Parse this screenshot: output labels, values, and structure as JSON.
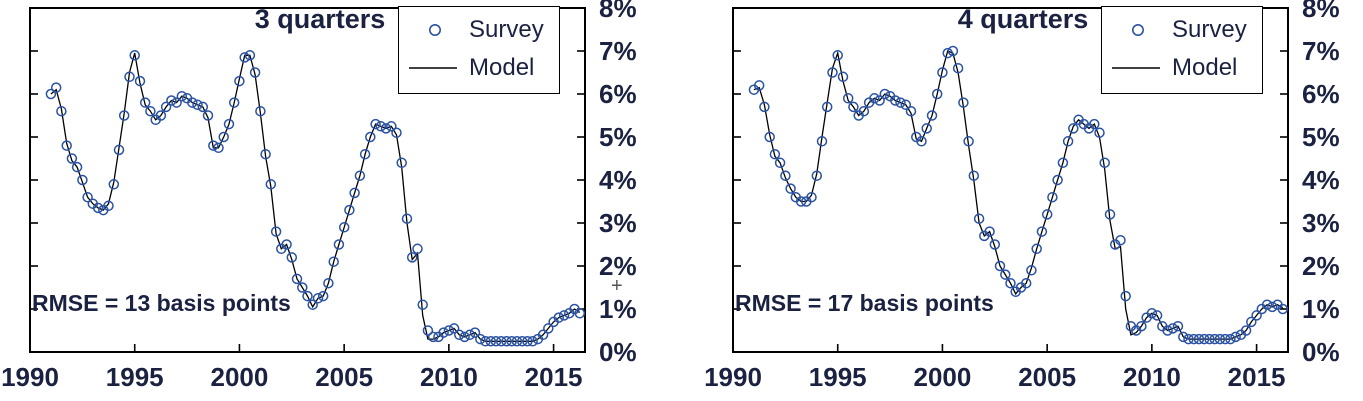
{
  "figure": {
    "background": "#ffffff",
    "text_color": "#1b2140",
    "survey_color": "#2a52a2",
    "model_color": "#000000",
    "axis_color": "#000000"
  },
  "cursor_artifact": {
    "glyph": "+"
  },
  "chart_data": [
    {
      "type": "line+scatter",
      "title": "3 quarters",
      "annotation": "RMSE = 13 basis points",
      "legend": [
        {
          "name": "Survey",
          "marker": "circle"
        },
        {
          "name": "Model",
          "marker": "line"
        }
      ],
      "legend_position": "top-right",
      "xlim": [
        1990,
        2016.5
      ],
      "ylim": [
        0,
        8
      ],
      "xticks": [
        1990,
        1995,
        2000,
        2005,
        2010,
        2015
      ],
      "yticks": [
        0,
        1,
        2,
        3,
        4,
        5,
        6,
        7,
        8
      ],
      "ytick_labels": [
        "0%",
        "1%",
        "2%",
        "3%",
        "4%",
        "5%",
        "6%",
        "7%",
        "8%"
      ],
      "grid": false,
      "columns": [
        "year",
        "survey_pct",
        "model_pct"
      ],
      "points": [
        [
          1991,
          6,
          6
        ],
        [
          1991.25,
          6.15,
          6.1
        ],
        [
          1991.5,
          5.6,
          5.65
        ],
        [
          1991.75,
          4.8,
          4.85
        ],
        [
          1992,
          4.5,
          4.45
        ],
        [
          1992.25,
          4.3,
          4.3
        ],
        [
          1992.5,
          4,
          3.95
        ],
        [
          1992.75,
          3.6,
          3.6
        ],
        [
          1993,
          3.45,
          3.45
        ],
        [
          1993.25,
          3.35,
          3.35
        ],
        [
          1993.5,
          3.3,
          3.3
        ],
        [
          1993.75,
          3.4,
          3.45
        ],
        [
          1994,
          3.9,
          3.95
        ],
        [
          1994.25,
          4.7,
          4.75
        ],
        [
          1994.5,
          5.5,
          5.55
        ],
        [
          1994.75,
          6.4,
          6.5
        ],
        [
          1995,
          6.9,
          6.95
        ],
        [
          1995.25,
          6.3,
          6.25
        ],
        [
          1995.5,
          5.8,
          5.75
        ],
        [
          1995.75,
          5.6,
          5.6
        ],
        [
          1996,
          5.4,
          5.4
        ],
        [
          1996.25,
          5.5,
          5.5
        ],
        [
          1996.5,
          5.7,
          5.7
        ],
        [
          1996.75,
          5.85,
          5.85
        ],
        [
          1997,
          5.8,
          5.8
        ],
        [
          1997.25,
          5.95,
          5.95
        ],
        [
          1997.5,
          5.9,
          5.9
        ],
        [
          1997.75,
          5.8,
          5.8
        ],
        [
          1998,
          5.75,
          5.75
        ],
        [
          1998.25,
          5.7,
          5.7
        ],
        [
          1998.5,
          5.5,
          5.45
        ],
        [
          1998.75,
          4.8,
          4.75
        ],
        [
          1999,
          4.75,
          4.75
        ],
        [
          1999.25,
          5,
          5
        ],
        [
          1999.5,
          5.3,
          5.3
        ],
        [
          1999.75,
          5.8,
          5.8
        ],
        [
          2000,
          6.3,
          6.35
        ],
        [
          2000.25,
          6.85,
          6.9
        ],
        [
          2000.5,
          6.9,
          6.9
        ],
        [
          2000.75,
          6.5,
          6.45
        ],
        [
          2001,
          5.6,
          5.55
        ],
        [
          2001.25,
          4.6,
          4.55
        ],
        [
          2001.5,
          3.9,
          3.85
        ],
        [
          2001.75,
          2.8,
          2.75
        ],
        [
          2002,
          2.4,
          2.4
        ],
        [
          2002.25,
          2.5,
          2.5
        ],
        [
          2002.5,
          2.2,
          2.15
        ],
        [
          2002.75,
          1.7,
          1.7
        ],
        [
          2003,
          1.5,
          1.5
        ],
        [
          2003.25,
          1.3,
          1.3
        ],
        [
          2003.5,
          1.1,
          1.05
        ],
        [
          2003.75,
          1.25,
          1.25
        ],
        [
          2004,
          1.3,
          1.3
        ],
        [
          2004.25,
          1.6,
          1.6
        ],
        [
          2004.5,
          2.1,
          2.1
        ],
        [
          2004.75,
          2.5,
          2.5
        ],
        [
          2005,
          2.9,
          2.9
        ],
        [
          2005.25,
          3.3,
          3.3
        ],
        [
          2005.5,
          3.7,
          3.7
        ],
        [
          2005.75,
          4.1,
          4.1
        ],
        [
          2006,
          4.6,
          4.6
        ],
        [
          2006.25,
          5,
          5
        ],
        [
          2006.5,
          5.3,
          5.3
        ],
        [
          2006.75,
          5.25,
          5.25
        ],
        [
          2007,
          5.2,
          5.2
        ],
        [
          2007.25,
          5.25,
          5.25
        ],
        [
          2007.5,
          5.1,
          5.05
        ],
        [
          2007.75,
          4.4,
          4.3
        ],
        [
          2008,
          3.1,
          3
        ],
        [
          2008.25,
          2.2,
          2.15
        ],
        [
          2008.5,
          2.4,
          2.3
        ],
        [
          2008.75,
          1.1,
          0.85
        ],
        [
          2009,
          0.5,
          0.3
        ],
        [
          2009.25,
          0.35,
          0.3
        ],
        [
          2009.5,
          0.35,
          0.35
        ],
        [
          2009.75,
          0.45,
          0.45
        ],
        [
          2010,
          0.5,
          0.5
        ],
        [
          2010.25,
          0.55,
          0.55
        ],
        [
          2010.5,
          0.4,
          0.4
        ],
        [
          2010.75,
          0.35,
          0.35
        ],
        [
          2011,
          0.4,
          0.4
        ],
        [
          2011.25,
          0.45,
          0.45
        ],
        [
          2011.5,
          0.3,
          0.3
        ],
        [
          2011.75,
          0.25,
          0.25
        ],
        [
          2012,
          0.25,
          0.25
        ],
        [
          2012.25,
          0.25,
          0.25
        ],
        [
          2012.5,
          0.25,
          0.25
        ],
        [
          2012.75,
          0.25,
          0.25
        ],
        [
          2013,
          0.25,
          0.25
        ],
        [
          2013.25,
          0.25,
          0.25
        ],
        [
          2013.5,
          0.25,
          0.25
        ],
        [
          2013.75,
          0.25,
          0.25
        ],
        [
          2014,
          0.25,
          0.25
        ],
        [
          2014.25,
          0.3,
          0.3
        ],
        [
          2014.5,
          0.4,
          0.4
        ],
        [
          2014.75,
          0.55,
          0.55
        ],
        [
          2015,
          0.7,
          0.7
        ],
        [
          2015.25,
          0.8,
          0.8
        ],
        [
          2015.5,
          0.85,
          0.85
        ],
        [
          2015.75,
          0.9,
          0.9
        ],
        [
          2016,
          1,
          1
        ],
        [
          2016.25,
          0.9,
          0.92
        ]
      ]
    },
    {
      "type": "line+scatter",
      "title": "4 quarters",
      "annotation": "RMSE = 17 basis points",
      "legend": [
        {
          "name": "Survey",
          "marker": "circle"
        },
        {
          "name": "Model",
          "marker": "line"
        }
      ],
      "legend_position": "top-right",
      "xlim": [
        1990,
        2016.5
      ],
      "ylim": [
        0,
        8
      ],
      "xticks": [
        1990,
        1995,
        2000,
        2005,
        2010,
        2015
      ],
      "yticks": [
        0,
        1,
        2,
        3,
        4,
        5,
        6,
        7,
        8
      ],
      "ytick_labels": [
        "0%",
        "1%",
        "2%",
        "3%",
        "4%",
        "5%",
        "6%",
        "7%",
        "8%"
      ],
      "grid": false,
      "columns": [
        "year",
        "survey_pct",
        "model_pct"
      ],
      "points": [
        [
          1991,
          6.1,
          6.1
        ],
        [
          1991.25,
          6.2,
          6.15
        ],
        [
          1991.5,
          5.7,
          5.75
        ],
        [
          1991.75,
          5,
          5.05
        ],
        [
          1992,
          4.6,
          4.55
        ],
        [
          1992.25,
          4.4,
          4.4
        ],
        [
          1992.5,
          4.1,
          4.05
        ],
        [
          1992.75,
          3.8,
          3.8
        ],
        [
          1993,
          3.6,
          3.6
        ],
        [
          1993.25,
          3.5,
          3.5
        ],
        [
          1993.5,
          3.5,
          3.5
        ],
        [
          1993.75,
          3.6,
          3.65
        ],
        [
          1994,
          4.1,
          4.15
        ],
        [
          1994.25,
          4.9,
          5
        ],
        [
          1994.5,
          5.7,
          5.8
        ],
        [
          1994.75,
          6.5,
          6.6
        ],
        [
          1995,
          6.9,
          6.95
        ],
        [
          1995.25,
          6.4,
          6.3
        ],
        [
          1995.5,
          5.9,
          5.85
        ],
        [
          1995.75,
          5.7,
          5.7
        ],
        [
          1996,
          5.5,
          5.5
        ],
        [
          1996.25,
          5.6,
          5.6
        ],
        [
          1996.5,
          5.8,
          5.8
        ],
        [
          1996.75,
          5.9,
          5.9
        ],
        [
          1997,
          5.85,
          5.85
        ],
        [
          1997.25,
          6,
          6
        ],
        [
          1997.5,
          5.95,
          5.95
        ],
        [
          1997.75,
          5.85,
          5.85
        ],
        [
          1998,
          5.8,
          5.8
        ],
        [
          1998.25,
          5.75,
          5.75
        ],
        [
          1998.5,
          5.6,
          5.55
        ],
        [
          1998.75,
          5,
          4.95
        ],
        [
          1999,
          4.9,
          4.9
        ],
        [
          1999.25,
          5.2,
          5.2
        ],
        [
          1999.5,
          5.5,
          5.5
        ],
        [
          1999.75,
          6,
          6
        ],
        [
          2000,
          6.5,
          6.55
        ],
        [
          2000.25,
          6.95,
          7
        ],
        [
          2000.5,
          7,
          6.95
        ],
        [
          2000.75,
          6.6,
          6.5
        ],
        [
          2001,
          5.8,
          5.7
        ],
        [
          2001.25,
          4.9,
          4.8
        ],
        [
          2001.5,
          4.1,
          4
        ],
        [
          2001.75,
          3.1,
          3
        ],
        [
          2002,
          2.7,
          2.7
        ],
        [
          2002.25,
          2.8,
          2.8
        ],
        [
          2002.5,
          2.5,
          2.45
        ],
        [
          2002.75,
          2,
          2
        ],
        [
          2003,
          1.8,
          1.8
        ],
        [
          2003.25,
          1.6,
          1.6
        ],
        [
          2003.5,
          1.4,
          1.35
        ],
        [
          2003.75,
          1.5,
          1.5
        ],
        [
          2004,
          1.6,
          1.6
        ],
        [
          2004.25,
          1.9,
          1.95
        ],
        [
          2004.5,
          2.4,
          2.4
        ],
        [
          2004.75,
          2.8,
          2.8
        ],
        [
          2005,
          3.2,
          3.2
        ],
        [
          2005.25,
          3.6,
          3.6
        ],
        [
          2005.5,
          4,
          4
        ],
        [
          2005.75,
          4.4,
          4.4
        ],
        [
          2006,
          4.9,
          4.9
        ],
        [
          2006.25,
          5.2,
          5.25
        ],
        [
          2006.5,
          5.4,
          5.4
        ],
        [
          2006.75,
          5.3,
          5.3
        ],
        [
          2007,
          5.2,
          5.2
        ],
        [
          2007.25,
          5.3,
          5.3
        ],
        [
          2007.5,
          5.1,
          5
        ],
        [
          2007.75,
          4.4,
          4.25
        ],
        [
          2008,
          3.2,
          3.05
        ],
        [
          2008.25,
          2.5,
          2.4
        ],
        [
          2008.5,
          2.6,
          2.45
        ],
        [
          2008.75,
          1.3,
          1
        ],
        [
          2009,
          0.6,
          0.4
        ],
        [
          2009.25,
          0.5,
          0.45
        ],
        [
          2009.5,
          0.6,
          0.6
        ],
        [
          2009.75,
          0.8,
          0.8
        ],
        [
          2010,
          0.9,
          0.9
        ],
        [
          2010.25,
          0.85,
          0.85
        ],
        [
          2010.5,
          0.6,
          0.6
        ],
        [
          2010.75,
          0.5,
          0.5
        ],
        [
          2011,
          0.55,
          0.55
        ],
        [
          2011.25,
          0.6,
          0.6
        ],
        [
          2011.5,
          0.35,
          0.35
        ],
        [
          2011.75,
          0.3,
          0.3
        ],
        [
          2012,
          0.3,
          0.3
        ],
        [
          2012.25,
          0.3,
          0.3
        ],
        [
          2012.5,
          0.3,
          0.3
        ],
        [
          2012.75,
          0.3,
          0.3
        ],
        [
          2013,
          0.3,
          0.3
        ],
        [
          2013.25,
          0.3,
          0.3
        ],
        [
          2013.5,
          0.3,
          0.3
        ],
        [
          2013.75,
          0.3,
          0.3
        ],
        [
          2014,
          0.35,
          0.35
        ],
        [
          2014.25,
          0.4,
          0.4
        ],
        [
          2014.5,
          0.5,
          0.5
        ],
        [
          2014.75,
          0.7,
          0.7
        ],
        [
          2015,
          0.85,
          0.85
        ],
        [
          2015.25,
          1,
          1
        ],
        [
          2015.5,
          1.1,
          1.1
        ],
        [
          2015.75,
          1.05,
          1.05
        ],
        [
          2016,
          1.1,
          1.1
        ],
        [
          2016.25,
          1,
          1.02
        ]
      ]
    }
  ]
}
